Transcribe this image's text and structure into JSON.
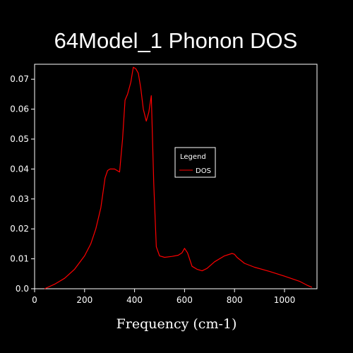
{
  "colors": {
    "background": "#000000",
    "axes": "#ffffff",
    "series": "#ff0000"
  },
  "chart_data": {
    "type": "line",
    "title": "64Model_1 Phonon DOS",
    "xlabel": "Frequency (cm-1)",
    "ylabel": "",
    "xlim": [
      0,
      1130
    ],
    "ylim": [
      0,
      0.075
    ],
    "xticks": [
      0,
      200,
      400,
      600,
      800,
      1000
    ],
    "yticks": [
      0.0,
      0.01,
      0.02,
      0.03,
      0.04,
      0.05,
      0.06,
      0.07
    ],
    "yticks_labels": [
      "0.0",
      "0.01",
      "0.02",
      "0.03",
      "0.04",
      "0.05",
      "0.06",
      "0.07"
    ],
    "grid": false,
    "legend": {
      "title": "Legend",
      "placement": "center-right"
    },
    "series": [
      {
        "name": "DOS",
        "x": [
          40,
          80,
          120,
          160,
          200,
          225,
          245,
          265,
          282,
          292,
          302,
          320,
          340,
          352,
          362,
          372,
          385,
          395,
          405,
          415,
          425,
          435,
          447,
          457,
          467,
          477,
          487,
          500,
          520,
          550,
          575,
          590,
          600,
          612,
          630,
          650,
          670,
          690,
          720,
          760,
          790,
          800,
          810,
          840,
          880,
          940,
          1000,
          1060,
          1090,
          1110
        ],
        "y": [
          0.0,
          0.0015,
          0.0035,
          0.0065,
          0.011,
          0.015,
          0.02,
          0.027,
          0.037,
          0.0395,
          0.04,
          0.04,
          0.039,
          0.05,
          0.063,
          0.065,
          0.069,
          0.074,
          0.0735,
          0.072,
          0.067,
          0.06,
          0.056,
          0.059,
          0.0645,
          0.035,
          0.014,
          0.011,
          0.0105,
          0.0108,
          0.0112,
          0.012,
          0.0135,
          0.012,
          0.0075,
          0.0065,
          0.006,
          0.0068,
          0.009,
          0.011,
          0.0118,
          0.0115,
          0.0105,
          0.0085,
          0.0072,
          0.0058,
          0.0042,
          0.0025,
          0.0012,
          0.0005
        ]
      }
    ]
  }
}
